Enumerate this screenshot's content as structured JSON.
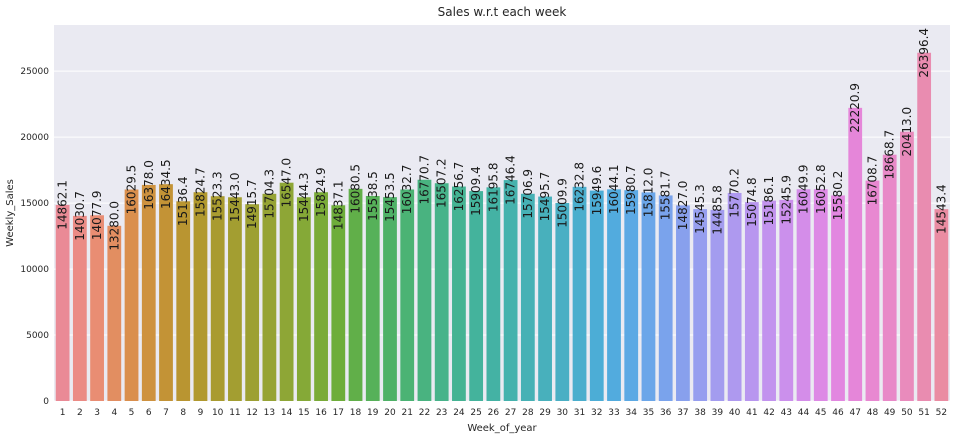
{
  "chart_data": {
    "type": "bar",
    "title": "Sales w.r.t each week",
    "xlabel": "Week_of_year",
    "ylabel": "Weekly_Sales",
    "ylim": [
      0,
      28500
    ],
    "yticks": [
      0,
      5000,
      10000,
      15000,
      20000,
      25000
    ],
    "grid": true,
    "legend": "none",
    "background": "#eaeaf2",
    "categories": [
      "1",
      "2",
      "3",
      "4",
      "5",
      "6",
      "7",
      "8",
      "9",
      "10",
      "11",
      "12",
      "13",
      "14",
      "15",
      "16",
      "17",
      "18",
      "19",
      "20",
      "21",
      "22",
      "23",
      "24",
      "25",
      "26",
      "27",
      "28",
      "29",
      "30",
      "31",
      "32",
      "33",
      "34",
      "35",
      "36",
      "37",
      "38",
      "39",
      "40",
      "41",
      "42",
      "43",
      "44",
      "45",
      "46",
      "47",
      "48",
      "49",
      "50",
      "51",
      "52"
    ],
    "values": [
      14862.1,
      14030.7,
      14077.9,
      13280.0,
      16029.5,
      16378.0,
      16434.5,
      15136.4,
      15824.7,
      15523.3,
      15443.0,
      14915.7,
      15704.3,
      16547.0,
      15444.3,
      15824.9,
      14837.1,
      16080.5,
      15538.5,
      15453.5,
      16032.7,
      16770.7,
      16507.2,
      16256.7,
      15909.4,
      16195.8,
      16746.4,
      15706.9,
      15495.7,
      15009.9,
      16232.8,
      15949.6,
      16044.1,
      15980.7,
      15812.0,
      15581.7,
      14827.0,
      14545.3,
      14485.8,
      15770.2,
      15074.8,
      15186.1,
      15245.9,
      16049.9,
      16052.8,
      15580.2,
      22220.9,
      16708.7,
      18668.7,
      20413.0,
      26396.4,
      14543.4
    ],
    "labels": [
      "14862.1",
      "14030.7",
      "14077.9",
      "13280.0",
      "16029.5",
      "16378.0",
      "16434.5",
      "15136.4",
      "15824.7",
      "15523.3",
      "15443.0",
      "14915.7",
      "15704.3",
      "16547.0",
      "15444.3",
      "15824.9",
      "14837.1",
      "16080.5",
      "15538.5",
      "15453.5",
      "16032.7",
      "16770.7",
      "16507.2",
      "16256.7",
      "15909.4",
      "16195.8",
      "16746.4",
      "15706.9",
      "15495.7",
      "15009.9",
      "16232.8",
      "15949.6",
      "16044.1",
      "15980.7",
      "15812.0",
      "15581.7",
      "14827.0",
      "14545.3",
      "14485.8",
      "15770.2",
      "15074.8",
      "15186.1",
      "15245.9",
      "16049.9",
      "16052.8",
      "15580.2",
      "22220.9",
      "16708.7",
      "18668.7",
      "20413.0",
      "26396.4",
      "14543.4"
    ],
    "colors": [
      "#ea8a96",
      "#eb8b85",
      "#e98d73",
      "#e28e61",
      "#da8f4d",
      "#ce923f",
      "#c39336",
      "#b99531",
      "#b1992f",
      "#a99b30",
      "#a39e31",
      "#9da033",
      "#96a335",
      "#8ea636",
      "#85a937",
      "#7aab38",
      "#6ead3a",
      "#61af49",
      "#56b159",
      "#4fb167",
      "#4bb374",
      "#49b380",
      "#47b38a",
      "#45b393",
      "#44b39c",
      "#44b2a4",
      "#45b2ad",
      "#46b1b5",
      "#48b0bc",
      "#4aafc4",
      "#4baecd",
      "#4cadd6",
      "#52abde",
      "#5ca9e4",
      "#6ba6e9",
      "#7aa3ec",
      "#88a0ed",
      "#969eef",
      "#a39cef",
      "#ae99ef",
      "#b896ef",
      "#c293ee",
      "#cb90ec",
      "#d48de9",
      "#dd8ae5",
      "#e287e0",
      "#e586d9",
      "#e888d1",
      "#e889c8",
      "#e98bbc",
      "#e98cb0",
      "#ea8ca2"
    ]
  }
}
